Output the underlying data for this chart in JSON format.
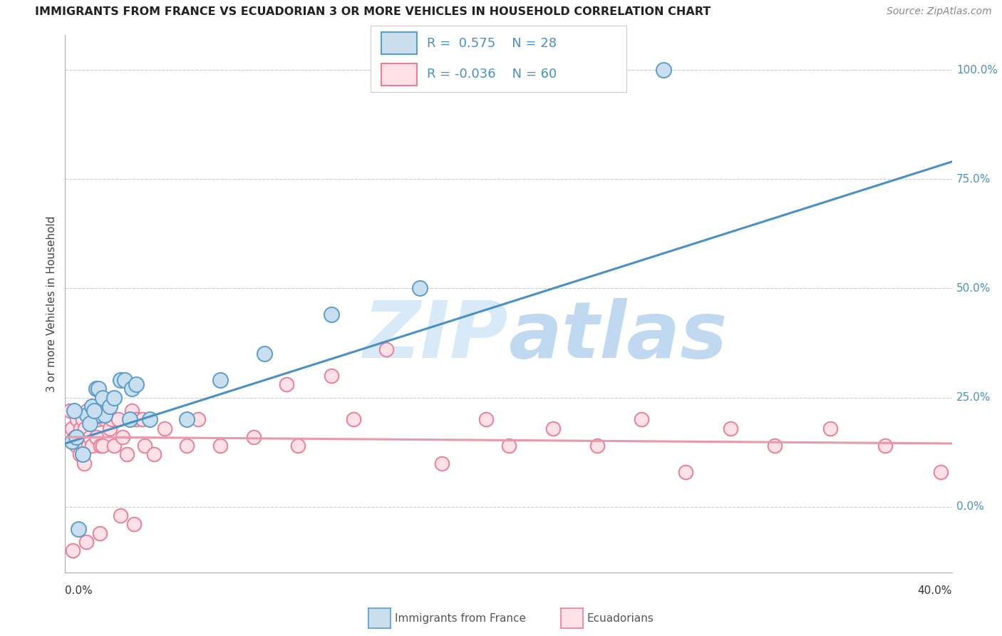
{
  "title": "IMMIGRANTS FROM FRANCE VS ECUADORIAN 3 OR MORE VEHICLES IN HOUSEHOLD CORRELATION CHART",
  "source": "Source: ZipAtlas.com",
  "ylabel": "3 or more Vehicles in Household",
  "ytick_vals": [
    0,
    25,
    50,
    75,
    100
  ],
  "xmin": 0.0,
  "xmax": 40.0,
  "ymin": -15,
  "ymax": 108,
  "blue_color": "#7ab3d9",
  "blue_edge": "#5b9ec9",
  "blue_fill": "#c9dff0",
  "pink_color": "#f5a0b0",
  "pink_edge": "#e88098",
  "pink_fill": "#fde0e8",
  "blue_line_color": "#4a90c4",
  "pink_line_color": "#e899aa",
  "watermark_color": "#d4e8f8",
  "blue_R": "0.575",
  "blue_N": "28",
  "pink_R": "-0.036",
  "pink_N": "60",
  "blue_dots_x": [
    0.3,
    0.5,
    0.8,
    1.0,
    1.2,
    1.4,
    1.5,
    1.6,
    1.7,
    1.8,
    2.0,
    2.2,
    2.5,
    2.7,
    3.0,
    3.2,
    3.8,
    5.5,
    7.0,
    9.0,
    12.0,
    16.0,
    27.0,
    0.4,
    0.6,
    1.1,
    1.3,
    2.9
  ],
  "blue_dots_y": [
    15,
    16,
    12,
    21,
    23,
    27,
    27,
    21,
    25,
    21,
    23,
    25,
    29,
    29,
    27,
    28,
    20,
    20,
    29,
    35,
    44,
    50,
    100,
    22,
    -5,
    19,
    22,
    20
  ],
  "pink_dots_x": [
    0.2,
    0.3,
    0.45,
    0.5,
    0.55,
    0.65,
    0.7,
    0.8,
    0.85,
    0.9,
    1.0,
    1.05,
    1.1,
    1.2,
    1.3,
    1.4,
    1.5,
    1.6,
    1.7,
    1.8,
    1.9,
    2.0,
    2.1,
    2.2,
    2.4,
    2.6,
    2.8,
    3.0,
    3.2,
    3.5,
    3.6,
    4.0,
    4.5,
    5.5,
    6.0,
    7.0,
    8.5,
    10.0,
    10.5,
    12.0,
    13.0,
    14.5,
    17.0,
    19.0,
    20.0,
    22.0,
    24.0,
    26.0,
    28.0,
    30.0,
    32.0,
    34.5,
    37.0,
    39.5,
    0.35,
    0.6,
    0.95,
    1.55,
    2.5,
    3.1
  ],
  "pink_dots_y": [
    22,
    18,
    16,
    14,
    20,
    12,
    18,
    20,
    10,
    18,
    22,
    14,
    16,
    14,
    20,
    16,
    20,
    14,
    14,
    20,
    22,
    18,
    20,
    14,
    20,
    16,
    12,
    22,
    20,
    20,
    14,
    12,
    18,
    14,
    20,
    14,
    16,
    28,
    14,
    30,
    20,
    36,
    10,
    20,
    14,
    18,
    14,
    20,
    8,
    18,
    14,
    18,
    14,
    8,
    -10,
    -5,
    -8,
    -6,
    -2,
    -4
  ],
  "blue_line_x": [
    0.0,
    40.0
  ],
  "blue_line_y": [
    14.5,
    79.0
  ],
  "pink_line_x": [
    0.0,
    40.0
  ],
  "pink_line_y": [
    16.0,
    14.5
  ]
}
